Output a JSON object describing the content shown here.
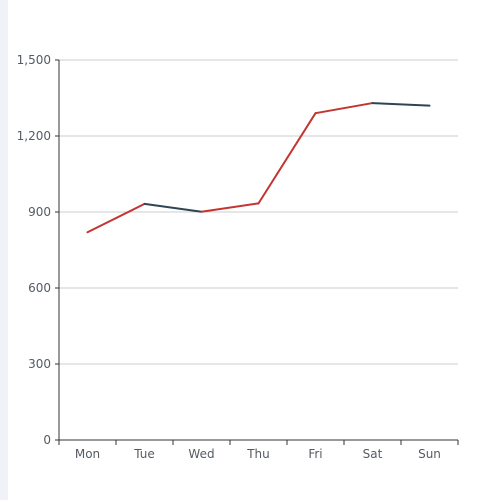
{
  "chart_data": {
    "type": "line",
    "title": "",
    "xlabel": "",
    "ylabel": "",
    "categories": [
      "Mon",
      "Tue",
      "Wed",
      "Thu",
      "Fri",
      "Sat",
      "Sun"
    ],
    "values": [
      820,
      932,
      901,
      934,
      1290,
      1330,
      1320
    ],
    "ylim": [
      0,
      1500
    ],
    "y_ticks": [
      0,
      300,
      600,
      900,
      1200,
      1500
    ],
    "y_tick_labels": [
      "0",
      "300",
      "600",
      "900",
      "1,200",
      "1,500"
    ],
    "grid": true,
    "colors": {
      "rising": "#c23531",
      "falling": "#2f4554",
      "axis": "#333333",
      "grid": "#cccccc"
    }
  }
}
